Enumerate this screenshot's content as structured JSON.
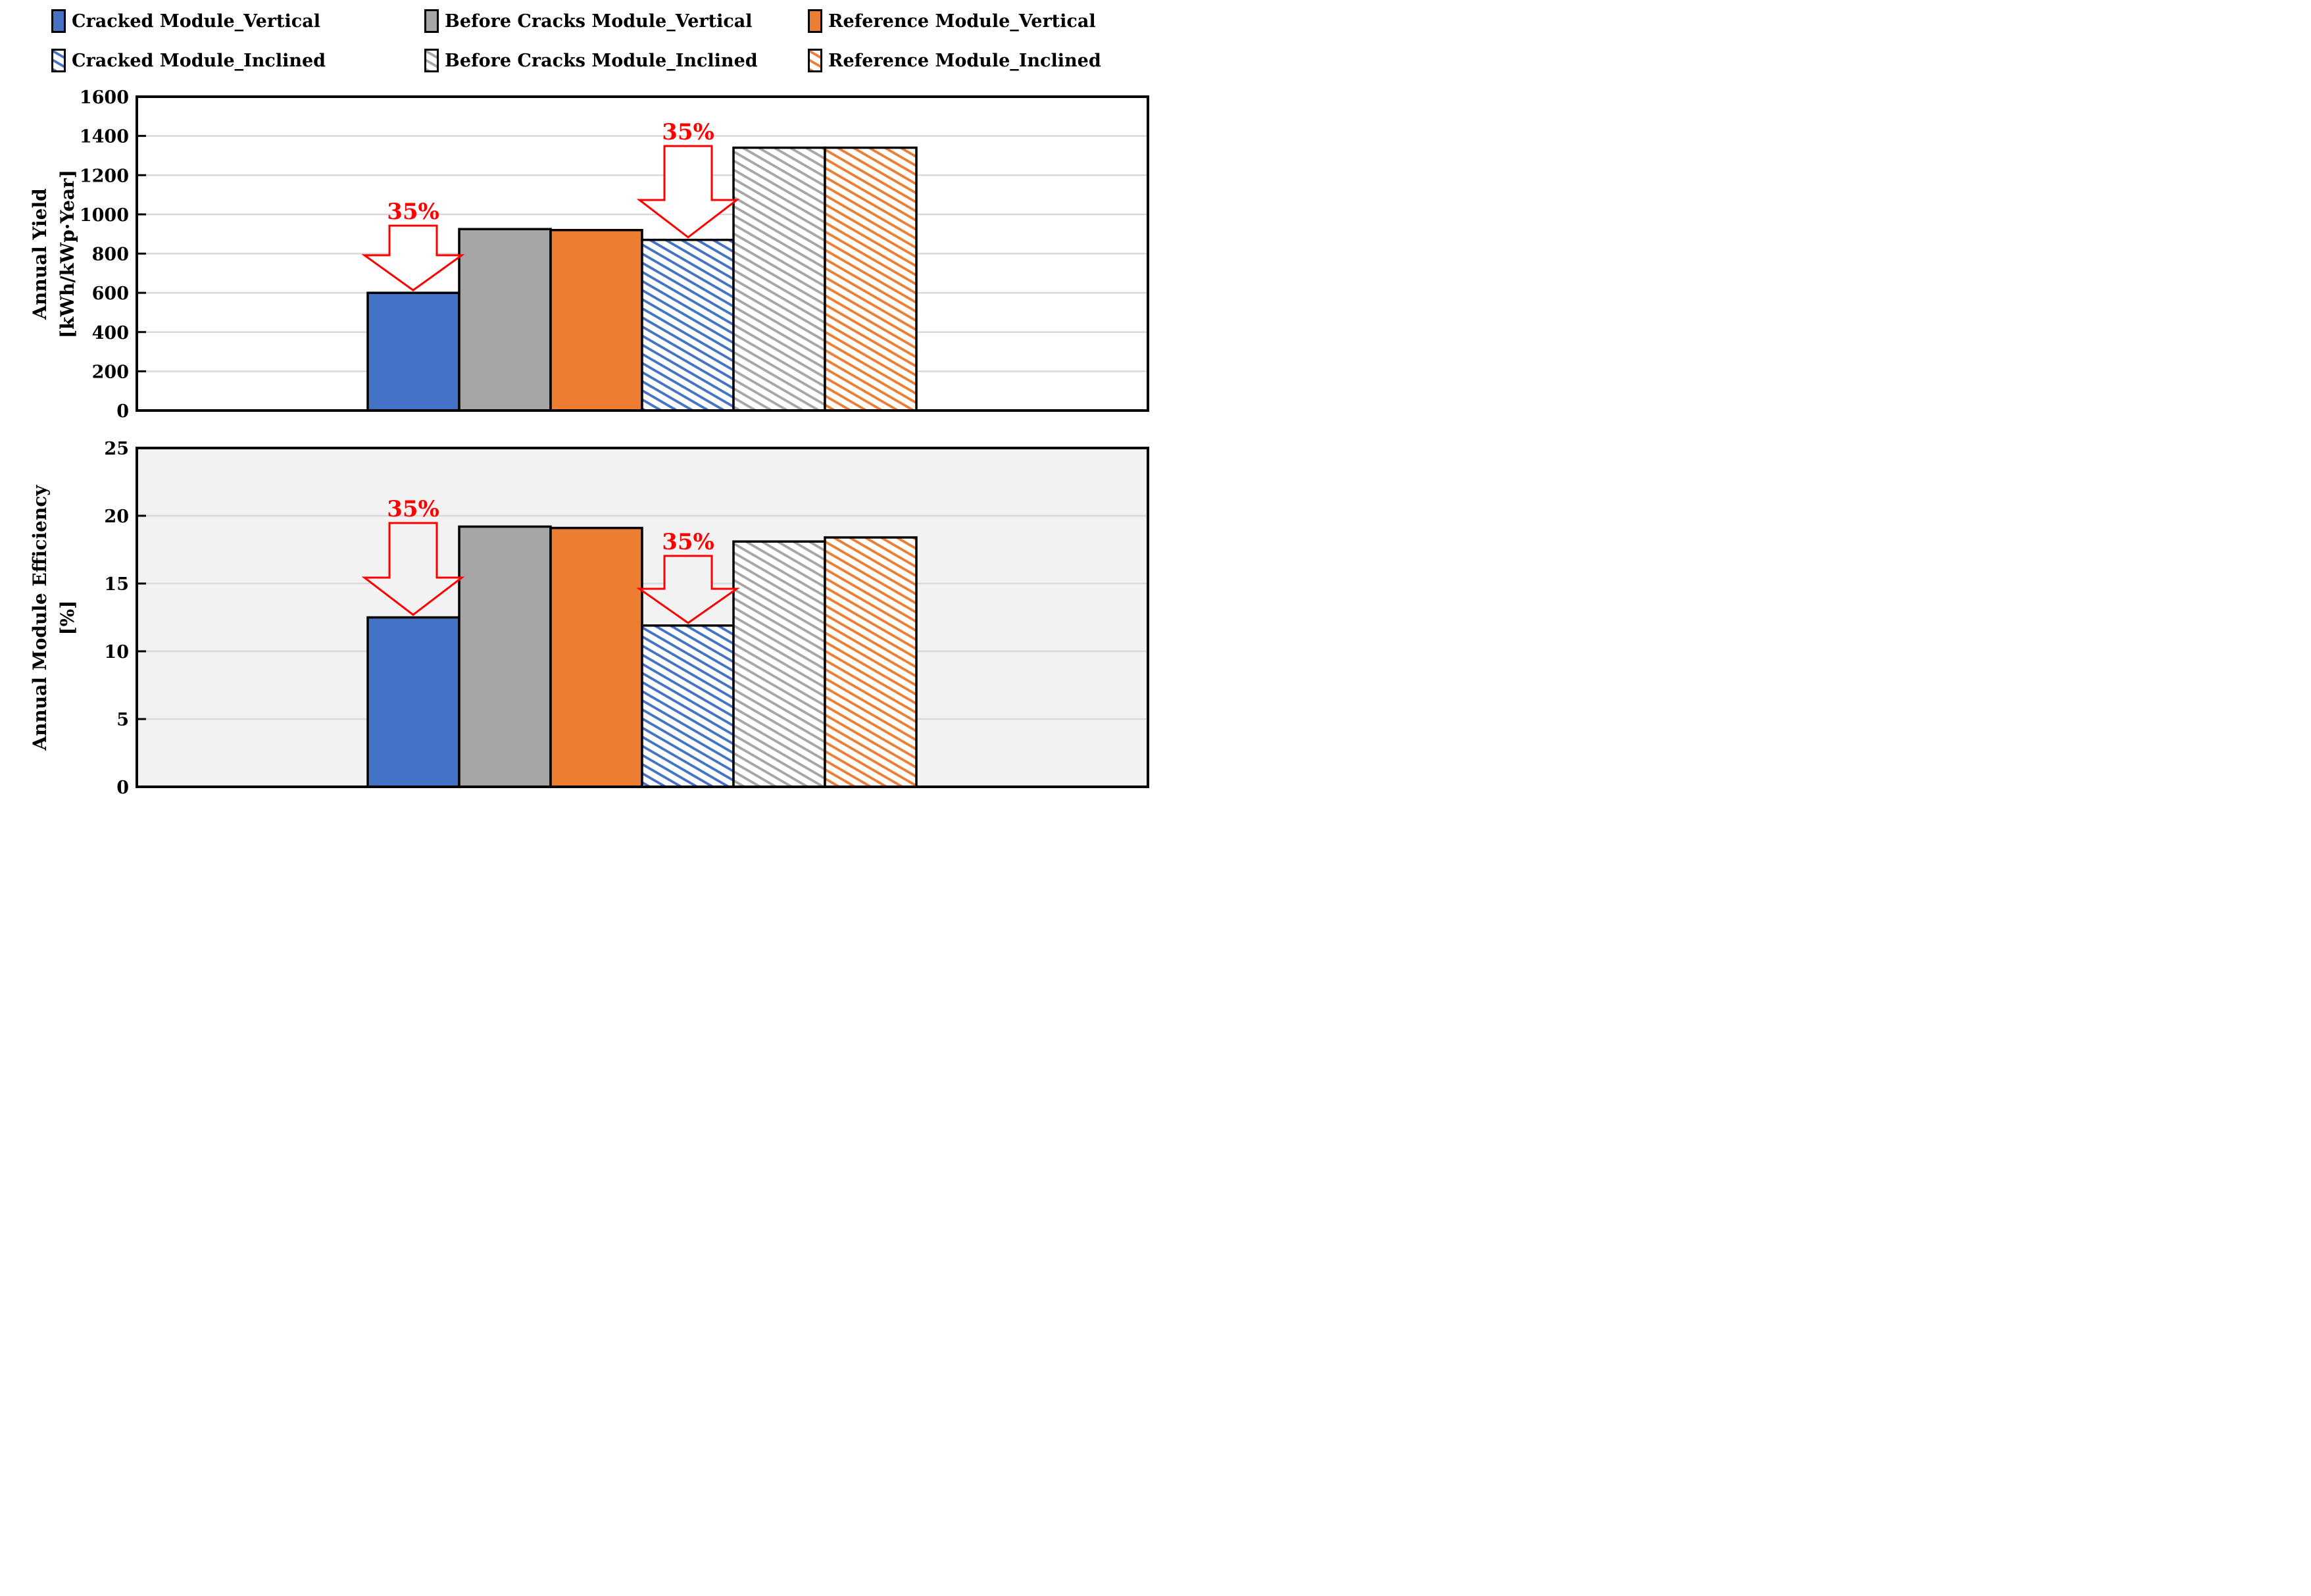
{
  "colors": {
    "blue": "#4472C4",
    "gray": "#A6A6A6",
    "orange": "#ED7D31",
    "annotation_red": "#FF0000",
    "gridline": "#D9D9D9",
    "frame": "#000000",
    "plot_bg_top": "#FFFFFF",
    "plot_bg_bottom": "#F2F2F2"
  },
  "legend": {
    "items": [
      {
        "label": "Cracked Module_Vertical",
        "color": "blue",
        "fill": "solid"
      },
      {
        "label": "Before Cracks Module_Vertical",
        "color": "gray",
        "fill": "solid"
      },
      {
        "label": "Reference Module_Vertical",
        "color": "orange",
        "fill": "solid"
      },
      {
        "label": "Cracked Module_Inclined",
        "color": "blue",
        "fill": "hatched"
      },
      {
        "label": "Before Cracks Module_Inclined",
        "color": "gray",
        "fill": "hatched"
      },
      {
        "label": "Reference Module_Inclined",
        "color": "orange",
        "fill": "hatched"
      }
    ]
  },
  "chart_data": [
    {
      "type": "bar",
      "title": "",
      "ylabel_line1": "Annual Yield",
      "ylabel_line2": "[kWh/kWp·Year]",
      "ylim": [
        0,
        1600
      ],
      "ytick_step": 200,
      "grid": true,
      "legend_position": "top",
      "categories": [
        "Cracked Module_Vertical",
        "Before Cracks Module_Vertical",
        "Reference Module_Vertical",
        "Cracked Module_Inclined",
        "Before Cracks Module_Inclined",
        "Reference Module_Inclined"
      ],
      "values": [
        600,
        925,
        920,
        870,
        1340,
        1340
      ],
      "annotations": [
        {
          "label": "35%",
          "target_bar": 0
        },
        {
          "label": "35%",
          "target_bar": 3
        }
      ]
    },
    {
      "type": "bar",
      "title": "",
      "ylabel_line1": "Annual Module Efficiency",
      "ylabel_line2": "[%]",
      "ylim": [
        0,
        25
      ],
      "ytick_step": 5,
      "grid": true,
      "legend_position": "top",
      "categories": [
        "Cracked Module_Vertical",
        "Before Cracks Module_Vertical",
        "Reference Module_Vertical",
        "Cracked Module_Inclined",
        "Before Cracks Module_Inclined",
        "Reference Module_Inclined"
      ],
      "values": [
        12.5,
        19.2,
        19.1,
        11.9,
        18.1,
        18.4
      ],
      "annotations": [
        {
          "label": "35%",
          "target_bar": 0
        },
        {
          "label": "35%",
          "target_bar": 3
        }
      ]
    }
  ]
}
